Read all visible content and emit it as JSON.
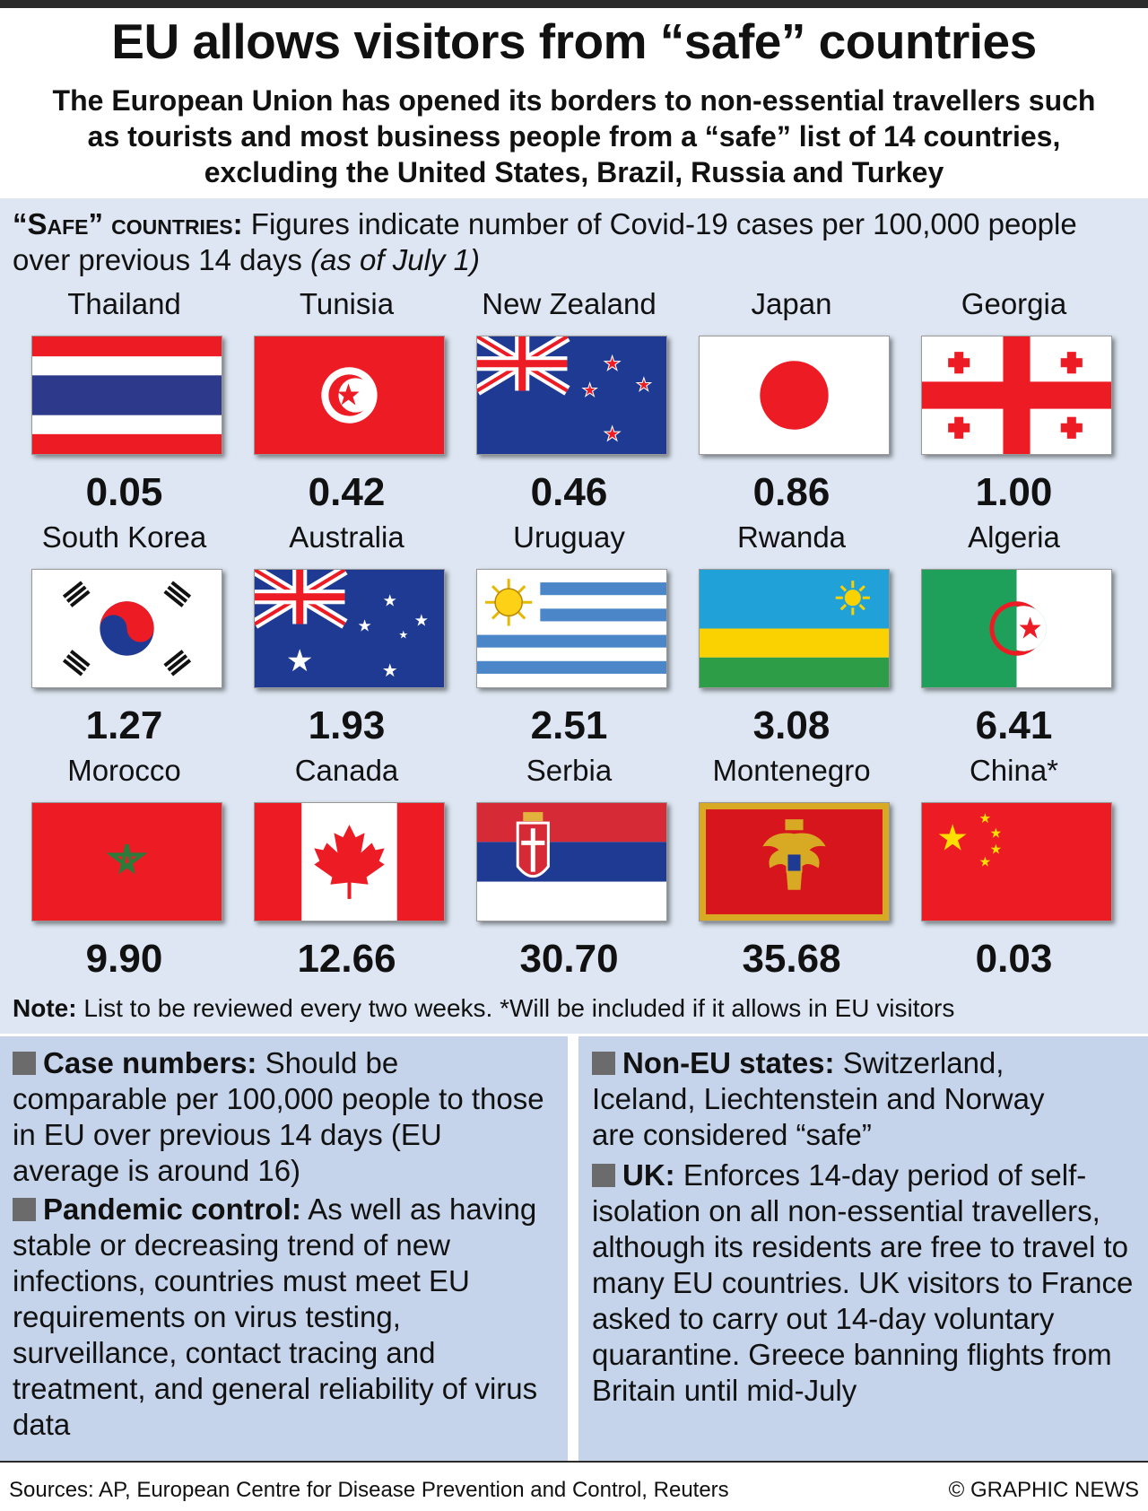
{
  "title": "EU allows visitors from “safe” countries",
  "intro": "The European Union has opened its borders to non-essential travellers such as tourists and most business people from a “safe” list of 14 countries, excluding the United States, Brazil, Russia and Turkey",
  "safe_heading": "“Safe” countries:",
  "safe_desc": "Figures indicate number of Covid-19 cases per 100,000 people over previous 14 days",
  "safe_date": "(as of July 1)",
  "countries": [
    {
      "name": "Thailand",
      "value": "0.05",
      "flag": "thailand-flag"
    },
    {
      "name": "Tunisia",
      "value": "0.42",
      "flag": "tunisia-flag"
    },
    {
      "name": "New Zealand",
      "value": "0.46",
      "flag": "new-zealand-flag"
    },
    {
      "name": "Japan",
      "value": "0.86",
      "flag": "japan-flag"
    },
    {
      "name": "Georgia",
      "value": "1.00",
      "flag": "georgia-flag"
    },
    {
      "name": "South Korea",
      "value": "1.27",
      "flag": "south-korea-flag"
    },
    {
      "name": "Australia",
      "value": "1.93",
      "flag": "australia-flag"
    },
    {
      "name": "Uruguay",
      "value": "2.51",
      "flag": "uruguay-flag"
    },
    {
      "name": "Rwanda",
      "value": "3.08",
      "flag": "rwanda-flag"
    },
    {
      "name": "Algeria",
      "value": "6.41",
      "flag": "algeria-flag"
    },
    {
      "name": "Morocco",
      "value": "9.90",
      "flag": "morocco-flag"
    },
    {
      "name": "Canada",
      "value": "12.66",
      "flag": "canada-flag"
    },
    {
      "name": "Serbia",
      "value": "30.70",
      "flag": "serbia-flag"
    },
    {
      "name": "Montenegro",
      "value": "35.68",
      "flag": "montenegro-flag"
    },
    {
      "name": "China*",
      "value": "0.03",
      "flag": "china-flag"
    }
  ],
  "note_label": "Note:",
  "note_text": "List to be reviewed every two weeks. *Will be included if it allows in EU visitors",
  "criteria": {
    "case_label": "Case numbers:",
    "case_text": "Should be comparable per 100,000 people to those in EU over previous 14 days (EU average is around 16)",
    "pandemic_label": "Pandemic control:",
    "pandemic_text": "As well as having stable or decreasing trend of new infections, countries must meet EU requirements on virus testing, surveillance, contact tracing and treatment, and general reliability of virus data",
    "noneu_label": "Non-EU states:",
    "noneu_text": "Switzerland, Iceland, Liechtenstein and Norway are considered “safe”",
    "uk_label": "UK:",
    "uk_text": "Enforces 14-day period of self-isolation on all non-essential travellers, although its residents are free to travel to many EU countries. UK visitors to France asked to carry out 14-day voluntary quarantine. Greece banning flights from Britain until mid-July"
  },
  "sources": "Sources: AP, European Centre for Disease Prevention and Control, Reuters",
  "credit": "© GRAPHIC NEWS",
  "colors": {
    "panel": "#dde6f2",
    "box": "#c5d4ea",
    "flag_red": "#ed1c24",
    "flag_blue": "#1f3a93"
  }
}
